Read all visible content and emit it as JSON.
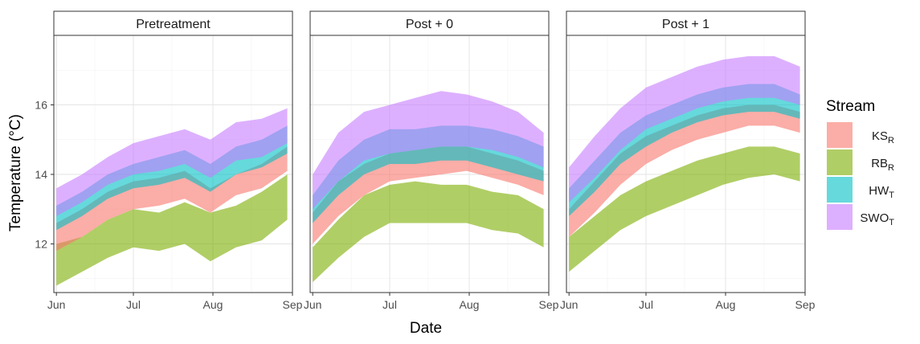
{
  "chart_data": {
    "type": "area",
    "xlabel": "Date",
    "ylabel": "Temperature (°C)",
    "ylim": [
      10.6,
      18.0
    ],
    "yticks": [
      12,
      14,
      16
    ],
    "xticks": [
      "Jun",
      "Jul",
      "Aug",
      "Sep"
    ],
    "x_range_days": [
      -1,
      92
    ],
    "x_tick_days": [
      0,
      30,
      61,
      92
    ],
    "grid": true,
    "legend": {
      "title": "Stream",
      "position": "right",
      "entries": [
        {
          "base": "KS",
          "sub": "R",
          "color": "#F8766D"
        },
        {
          "base": "RB",
          "sub": "R",
          "color": "#7CAE00"
        },
        {
          "base": "HW",
          "sub": "T",
          "color": "#00BFC4"
        },
        {
          "base": "SWO",
          "sub": "T",
          "color": "#C77CFF"
        }
      ]
    },
    "panels": [
      {
        "title": "Pretreatment",
        "x_day": [
          0,
          10,
          20,
          30,
          40,
          50,
          60,
          70,
          80,
          90
        ],
        "series": [
          {
            "stream": "RB",
            "lower": [
              10.8,
              11.2,
              11.6,
              11.9,
              11.8,
              12.0,
              11.5,
              11.9,
              12.1,
              12.7
            ],
            "upper": [
              12.0,
              12.2,
              12.7,
              13.0,
              12.9,
              13.2,
              12.9,
              13.1,
              13.5,
              14.0
            ]
          },
          {
            "stream": "KS",
            "lower": [
              11.8,
              12.2,
              12.7,
              13.0,
              13.1,
              13.3,
              12.9,
              13.4,
              13.6,
              14.1
            ],
            "upper": [
              12.6,
              13.0,
              13.5,
              13.8,
              13.9,
              14.1,
              13.6,
              14.0,
              14.3,
              14.8
            ]
          },
          {
            "stream": "HW",
            "lower": [
              12.4,
              12.8,
              13.3,
              13.6,
              13.7,
              13.9,
              13.5,
              14.0,
              14.2,
              14.6
            ],
            "upper": [
              13.1,
              13.5,
              14.0,
              14.3,
              14.5,
              14.7,
              14.3,
              14.8,
              15.0,
              15.4
            ]
          },
          {
            "stream": "SWO",
            "lower": [
              12.8,
              13.2,
              13.7,
              14.0,
              14.1,
              14.3,
              13.9,
              14.4,
              14.5,
              14.9
            ],
            "upper": [
              13.6,
              14.0,
              14.5,
              14.9,
              15.1,
              15.3,
              15.0,
              15.5,
              15.6,
              15.9
            ]
          }
        ]
      },
      {
        "title": "Post + 0",
        "x_day": [
          0,
          10,
          20,
          30,
          40,
          50,
          60,
          70,
          80,
          90
        ],
        "series": [
          {
            "stream": "RB",
            "lower": [
              10.9,
              11.6,
              12.2,
              12.6,
              12.6,
              12.6,
              12.6,
              12.4,
              12.3,
              11.9
            ],
            "upper": [
              11.9,
              12.7,
              13.4,
              13.7,
              13.8,
              13.7,
              13.7,
              13.5,
              13.4,
              13.0
            ]
          },
          {
            "stream": "KS",
            "lower": [
              12.0,
              12.8,
              13.4,
              13.8,
              13.9,
              14.0,
              14.1,
              13.9,
              13.7,
              13.4
            ],
            "upper": [
              12.9,
              13.8,
              14.3,
              14.6,
              14.7,
              14.8,
              14.8,
              14.6,
              14.4,
              14.1
            ]
          },
          {
            "stream": "HW",
            "lower": [
              12.6,
              13.4,
              14.0,
              14.3,
              14.3,
              14.4,
              14.4,
              14.2,
              14.0,
              13.8
            ],
            "upper": [
              13.4,
              14.4,
              15.0,
              15.3,
              15.3,
              15.4,
              15.4,
              15.3,
              15.1,
              14.8
            ]
          },
          {
            "stream": "SWO",
            "lower": [
              13.0,
              13.8,
              14.4,
              14.6,
              14.7,
              14.8,
              14.8,
              14.7,
              14.5,
              14.2
            ],
            "upper": [
              14.0,
              15.2,
              15.8,
              16.0,
              16.2,
              16.4,
              16.3,
              16.1,
              15.8,
              15.2
            ]
          }
        ]
      },
      {
        "title": "Post + 1",
        "x_day": [
          0,
          10,
          20,
          30,
          40,
          50,
          60,
          70,
          80,
          90
        ],
        "series": [
          {
            "stream": "RB",
            "lower": [
              11.2,
              11.8,
              12.4,
              12.8,
              13.1,
              13.4,
              13.7,
              13.9,
              14.0,
              13.8
            ],
            "upper": [
              12.2,
              12.8,
              13.4,
              13.8,
              14.1,
              14.4,
              14.6,
              14.8,
              14.8,
              14.6
            ]
          },
          {
            "stream": "KS",
            "lower": [
              12.2,
              12.9,
              13.7,
              14.3,
              14.7,
              15.0,
              15.2,
              15.4,
              15.4,
              15.2
            ],
            "upper": [
              13.0,
              13.8,
              14.6,
              15.1,
              15.4,
              15.7,
              15.9,
              16.0,
              16.0,
              15.8
            ]
          },
          {
            "stream": "HW",
            "lower": [
              12.8,
              13.5,
              14.3,
              14.8,
              15.2,
              15.5,
              15.7,
              15.8,
              15.8,
              15.6
            ],
            "upper": [
              13.6,
              14.4,
              15.2,
              15.7,
              16.0,
              16.3,
              16.5,
              16.6,
              16.6,
              16.3
            ]
          },
          {
            "stream": "SWO",
            "lower": [
              13.2,
              13.9,
              14.7,
              15.3,
              15.6,
              15.9,
              16.1,
              16.2,
              16.2,
              16.0
            ],
            "upper": [
              14.2,
              15.1,
              15.9,
              16.5,
              16.8,
              17.1,
              17.3,
              17.4,
              17.4,
              17.1
            ]
          }
        ]
      }
    ]
  }
}
